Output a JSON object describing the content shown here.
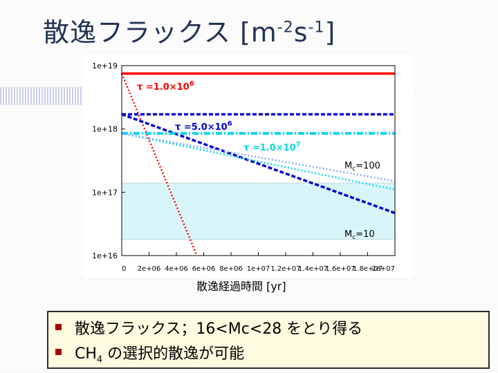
{
  "slide": {
    "title_main": "散逸フラックス [m",
    "title_sup1": "-2",
    "title_mid": "s",
    "title_sup2": "-1",
    "title_end": "]"
  },
  "colors": {
    "title": "#223355",
    "tau_1e6": "#ff0000",
    "tau_5e6": "#0000cc",
    "tau_1e7": "#00d8e8",
    "mc_band": "#d8f6fa",
    "bullet": "#aa0000",
    "box_bg": "#fffbe0"
  },
  "chart_data": {
    "type": "line",
    "title": "",
    "xlabel": "散逸経過時間 [yr]",
    "ylabel": "",
    "y_scale": "log",
    "xlim": [
      0,
      20000000
    ],
    "ylim": [
      1e+16,
      1e+19
    ],
    "x_ticks": [
      "0",
      "2e+06",
      "4e+06",
      "6e+06",
      "8e+06",
      "1e+07",
      "1.2e+07",
      "1.4e+07",
      "1.6e+07",
      "1.8e+07",
      "2e+07"
    ],
    "y_ticks": [
      "1e+19",
      "1e+18",
      "1e+17",
      "1e+16"
    ],
    "shaded_band": {
      "from": 1.8e+16,
      "to": 1.4e+17,
      "label_top": "M",
      "label_top_sub": "c",
      "label_top_val": "=100",
      "label_bottom": "M",
      "label_bottom_sub": "c",
      "label_bottom_val": "=10"
    },
    "series": [
      {
        "group": "tau_1e6",
        "style": "solid",
        "color": "#ff0000",
        "x": [
          0,
          20000000
        ],
        "y": [
          7.5e+18,
          7.5e+18
        ]
      },
      {
        "group": "tau_1e6",
        "style": "dotted",
        "color": "#ff0000",
        "x": [
          0,
          5500000
        ],
        "y": [
          7.5e+18,
          1e+16
        ]
      },
      {
        "group": "tau_5e6",
        "style": "dashed",
        "color": "#0000cc",
        "x": [
          0,
          20000000
        ],
        "y": [
          1.7e+18,
          1.7e+18
        ]
      },
      {
        "group": "tau_5e6",
        "style": "dashed",
        "color": "#0000cc",
        "x": [
          0,
          20000000
        ],
        "y": [
          1.7e+18,
          4.7e+16
        ]
      },
      {
        "group": "tau_1e7",
        "style": "dashdot",
        "color": "#00d8e8",
        "x": [
          0,
          20000000
        ],
        "y": [
          8.5e+17,
          8.5e+17
        ]
      },
      {
        "group": "tau_1e7",
        "style": "dotted",
        "color": "#00d8e8",
        "x": [
          0,
          20000000
        ],
        "y": [
          8.5e+17,
          1.1e+17
        ]
      },
      {
        "group": "tau_1e7",
        "style": "dotted",
        "color": "#80aaff",
        "x": [
          0,
          20000000
        ],
        "y": [
          8.5e+17,
          1.5e+17
        ]
      }
    ],
    "annotations": [
      {
        "base": "τ =1.0×10",
        "exp": "6",
        "color": "#ff0000"
      },
      {
        "base": "τ =5.0×10",
        "exp": "6",
        "color": "#0000cc"
      },
      {
        "base": "τ =1.0×10",
        "exp": "7",
        "color": "#00d8e8"
      }
    ]
  },
  "bullets": [
    {
      "text": "散逸フラックス；16<Mc<28 をとり得る"
    },
    {
      "text_pre": "CH",
      "text_sub": "4",
      "text_post": " の選択的散逸が可能"
    }
  ]
}
